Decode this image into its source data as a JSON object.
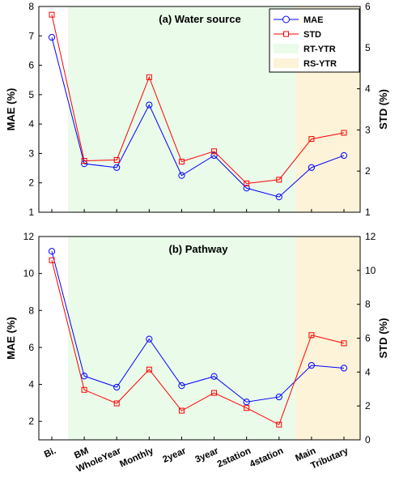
{
  "chart_data": [
    {
      "type": "line",
      "title": "(a) Water source",
      "ylabel": "MAE (%)",
      "y2label": "STD (%)",
      "ylim": [
        1,
        8
      ],
      "y2lim": [
        1,
        6
      ],
      "yticks": [
        1,
        2,
        3,
        4,
        5,
        6,
        7,
        8
      ],
      "y2ticks": [
        1,
        2,
        3,
        4,
        5,
        6
      ],
      "categories": [
        "Bi.",
        "BM",
        "WholeYear",
        "Monthly",
        "2year",
        "3year",
        "2station",
        "4station",
        "Main",
        "Tributary"
      ],
      "series": [
        {
          "name": "MAE",
          "axis": "left",
          "color": "#0000ff",
          "marker": "circle",
          "values": [
            6.95,
            2.65,
            2.52,
            4.65,
            2.25,
            2.93,
            1.82,
            1.52,
            2.52,
            2.93
          ]
        },
        {
          "name": "STD",
          "axis": "right",
          "color": "#ff0000",
          "marker": "square",
          "values": [
            5.8,
            2.25,
            2.27,
            4.28,
            2.23,
            2.48,
            1.7,
            1.79,
            2.78,
            2.93
          ]
        }
      ],
      "shaded_regions": [
        {
          "label": "RT-YTR",
          "from": "BM",
          "to": "4station",
          "color": "#eafbea"
        },
        {
          "label": "RS-YTR",
          "from": "Main",
          "to": "Tributary",
          "color": "#fdf3d9"
        }
      ],
      "legend": {
        "placement": "top-right",
        "entries": [
          "MAE",
          "STD",
          "RT-YTR",
          "RS-YTR"
        ]
      }
    },
    {
      "type": "line",
      "title": "(b) Pathway",
      "ylabel": "MAE (%)",
      "y2label": "STD (%)",
      "ylim": [
        1,
        12
      ],
      "y2lim": [
        0,
        12
      ],
      "yticks": [
        2,
        4,
        6,
        8,
        10,
        12
      ],
      "y2ticks": [
        0,
        2,
        4,
        6,
        8,
        10,
        12
      ],
      "categories": [
        "Bi.",
        "BM",
        "WholeYear",
        "Monthly",
        "2year",
        "3year",
        "2station",
        "4station",
        "Main",
        "Tributary"
      ],
      "series": [
        {
          "name": "MAE",
          "axis": "left",
          "color": "#0000ff",
          "marker": "circle",
          "values": [
            11.2,
            4.45,
            3.85,
            6.45,
            3.93,
            4.43,
            3.05,
            3.32,
            5.03,
            4.88
          ]
        },
        {
          "name": "STD",
          "axis": "right",
          "color": "#ff0000",
          "marker": "square",
          "values": [
            10.6,
            2.95,
            2.15,
            4.15,
            1.72,
            2.77,
            1.88,
            0.9,
            6.18,
            5.7
          ]
        }
      ],
      "shaded_regions": [
        {
          "label": "RT-YTR",
          "from": "BM",
          "to": "4station",
          "color": "#eafbea"
        },
        {
          "label": "RS-YTR",
          "from": "Main",
          "to": "Tributary",
          "color": "#fdf3d9"
        }
      ]
    }
  ]
}
